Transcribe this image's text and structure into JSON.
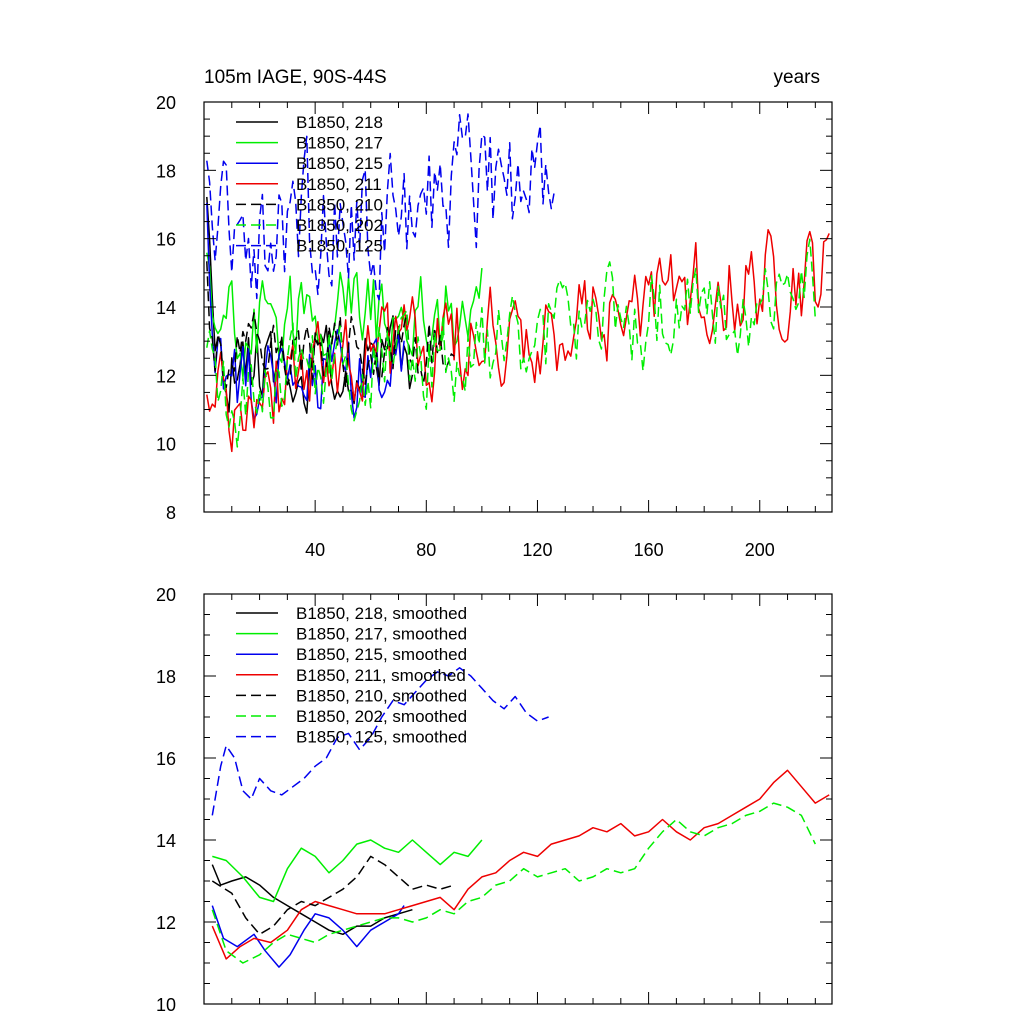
{
  "chart_data": [
    {
      "type": "line",
      "title_left": "105m IAGE, 90S-44S",
      "title_right": "years",
      "xlabel": "",
      "ylabel": "",
      "xlim": [
        0,
        226
      ],
      "ylim": [
        8,
        20
      ],
      "xticks": [
        40,
        80,
        120,
        160,
        200
      ],
      "yticks": [
        8,
        10,
        12,
        14,
        16,
        18,
        20
      ],
      "legend_position": "top-left",
      "series": [
        {
          "name": "B1850, 218",
          "color": "#000000",
          "dash": "solid",
          "start": 1,
          "length": 75,
          "base": 12.3,
          "trend": 0.0,
          "noise": 0.65,
          "early": 4.0,
          "seed": 11
        },
        {
          "name": "B1850, 217",
          "color": "#00ee00",
          "dash": "solid",
          "start": 1,
          "length": 100,
          "base": 13.4,
          "trend": 0.005,
          "noise": 0.75,
          "early": 2.5,
          "seed": 23
        },
        {
          "name": "B1850, 215",
          "color": "#0000ee",
          "dash": "solid",
          "start": 1,
          "length": 72,
          "base": 11.6,
          "trend": 0.004,
          "noise": 0.7,
          "early": 5.0,
          "seed": 37
        },
        {
          "name": "B1850, 211",
          "color": "#ee0000",
          "dash": "solid",
          "start": 1,
          "length": 225,
          "base": 11.4,
          "trend": 0.0165,
          "noise": 0.8,
          "early": 0.0,
          "seed": 41
        },
        {
          "name": "B1850, 210",
          "color": "#000000",
          "dash": "dashed",
          "start": 1,
          "length": 90,
          "base": 12.5,
          "trend": 0.006,
          "noise": 0.6,
          "early": 2.0,
          "seed": 53
        },
        {
          "name": "B1850, 202",
          "color": "#00ee00",
          "dash": "dashed",
          "start": 1,
          "length": 220,
          "base": 11.4,
          "trend": 0.0145,
          "noise": 0.8,
          "early": 2.0,
          "seed": 67
        },
        {
          "name": "B1850, 125",
          "color": "#0000ee",
          "dash": "dashed",
          "start": 1,
          "length": 126,
          "base": 15.6,
          "trend": 0.02,
          "noise": 1.1,
          "early": 2.0,
          "seed": 79
        }
      ]
    },
    {
      "type": "line",
      "title_left": "",
      "title_right": "",
      "xlabel": "",
      "ylabel": "",
      "xlim": [
        0,
        226
      ],
      "ylim": [
        10,
        20
      ],
      "xticks": [
        40,
        80,
        120,
        160,
        200
      ],
      "yticks": [
        10,
        12,
        14,
        16,
        18,
        20
      ],
      "legend_position": "top-left",
      "series": [
        {
          "name": "B1850, 218, smoothed",
          "color": "#000000",
          "dash": "solid",
          "points": [
            [
              3,
              13.4
            ],
            [
              6,
              12.9
            ],
            [
              10,
              13.0
            ],
            [
              15,
              13.1
            ],
            [
              20,
              12.9
            ],
            [
              25,
              12.6
            ],
            [
              30,
              12.4
            ],
            [
              35,
              12.2
            ],
            [
              40,
              12.0
            ],
            [
              45,
              11.8
            ],
            [
              50,
              11.7
            ],
            [
              55,
              11.9
            ],
            [
              60,
              11.9
            ],
            [
              65,
              12.1
            ],
            [
              70,
              12.2
            ],
            [
              75,
              12.3
            ]
          ]
        },
        {
          "name": "B1850, 217, smoothed",
          "color": "#00ee00",
          "dash": "solid",
          "points": [
            [
              3,
              13.6
            ],
            [
              8,
              13.5
            ],
            [
              14,
              13.1
            ],
            [
              20,
              12.6
            ],
            [
              25,
              12.5
            ],
            [
              30,
              13.3
            ],
            [
              35,
              13.8
            ],
            [
              40,
              13.6
            ],
            [
              45,
              13.2
            ],
            [
              50,
              13.5
            ],
            [
              55,
              13.9
            ],
            [
              60,
              14.0
            ],
            [
              65,
              13.8
            ],
            [
              70,
              13.7
            ],
            [
              75,
              14.0
            ],
            [
              80,
              13.7
            ],
            [
              85,
              13.4
            ],
            [
              90,
              13.7
            ],
            [
              95,
              13.6
            ],
            [
              100,
              14.0
            ]
          ]
        },
        {
          "name": "B1850, 215, smoothed",
          "color": "#0000ee",
          "dash": "solid",
          "points": [
            [
              3,
              12.4
            ],
            [
              7,
              11.6
            ],
            [
              12,
              11.4
            ],
            [
              18,
              11.7
            ],
            [
              22,
              11.3
            ],
            [
              27,
              10.9
            ],
            [
              31,
              11.2
            ],
            [
              36,
              11.8
            ],
            [
              40,
              12.2
            ],
            [
              45,
              12.1
            ],
            [
              50,
              11.8
            ],
            [
              55,
              11.4
            ],
            [
              60,
              11.8
            ],
            [
              65,
              12.0
            ],
            [
              70,
              12.2
            ],
            [
              72,
              12.4
            ]
          ]
        },
        {
          "name": "B1850, 211, smoothed",
          "color": "#ee0000",
          "dash": "solid",
          "points": [
            [
              3,
              11.9
            ],
            [
              8,
              11.1
            ],
            [
              13,
              11.4
            ],
            [
              18,
              11.6
            ],
            [
              24,
              11.5
            ],
            [
              30,
              11.8
            ],
            [
              35,
              12.3
            ],
            [
              40,
              12.5
            ],
            [
              45,
              12.4
            ],
            [
              50,
              12.3
            ],
            [
              55,
              12.2
            ],
            [
              60,
              12.2
            ],
            [
              65,
              12.2
            ],
            [
              70,
              12.3
            ],
            [
              75,
              12.4
            ],
            [
              80,
              12.5
            ],
            [
              85,
              12.6
            ],
            [
              90,
              12.3
            ],
            [
              95,
              12.8
            ],
            [
              100,
              13.1
            ],
            [
              105,
              13.2
            ],
            [
              110,
              13.5
            ],
            [
              115,
              13.7
            ],
            [
              120,
              13.6
            ],
            [
              125,
              13.9
            ],
            [
              130,
              14.0
            ],
            [
              135,
              14.1
            ],
            [
              140,
              14.3
            ],
            [
              145,
              14.2
            ],
            [
              150,
              14.4
            ],
            [
              155,
              14.1
            ],
            [
              160,
              14.2
            ],
            [
              165,
              14.5
            ],
            [
              170,
              14.2
            ],
            [
              175,
              14.0
            ],
            [
              180,
              14.3
            ],
            [
              185,
              14.4
            ],
            [
              190,
              14.6
            ],
            [
              195,
              14.8
            ],
            [
              200,
              15.0
            ],
            [
              205,
              15.4
            ],
            [
              210,
              15.7
            ],
            [
              215,
              15.3
            ],
            [
              220,
              14.9
            ],
            [
              225,
              15.1
            ]
          ]
        },
        {
          "name": "B1850, 210, smoothed",
          "color": "#000000",
          "dash": "dashed",
          "points": [
            [
              3,
              13.0
            ],
            [
              10,
              12.7
            ],
            [
              15,
              12.1
            ],
            [
              20,
              11.7
            ],
            [
              25,
              11.9
            ],
            [
              30,
              12.3
            ],
            [
              35,
              12.5
            ],
            [
              40,
              12.4
            ],
            [
              45,
              12.6
            ],
            [
              50,
              12.8
            ],
            [
              55,
              13.1
            ],
            [
              60,
              13.6
            ],
            [
              65,
              13.4
            ],
            [
              70,
              13.1
            ],
            [
              75,
              12.8
            ],
            [
              80,
              12.9
            ],
            [
              85,
              12.8
            ],
            [
              90,
              12.9
            ]
          ]
        },
        {
          "name": "B1850, 202, smoothed",
          "color": "#00ee00",
          "dash": "dashed",
          "points": [
            [
              3,
              12.3
            ],
            [
              8,
              11.3
            ],
            [
              14,
              11.0
            ],
            [
              20,
              11.2
            ],
            [
              25,
              11.5
            ],
            [
              30,
              11.7
            ],
            [
              35,
              11.6
            ],
            [
              40,
              11.5
            ],
            [
              45,
              11.7
            ],
            [
              50,
              11.8
            ],
            [
              55,
              11.9
            ],
            [
              60,
              12.0
            ],
            [
              65,
              12.1
            ],
            [
              70,
              12.1
            ],
            [
              75,
              12.0
            ],
            [
              80,
              12.1
            ],
            [
              85,
              12.3
            ],
            [
              90,
              12.2
            ],
            [
              95,
              12.5
            ],
            [
              100,
              12.6
            ],
            [
              105,
              12.9
            ],
            [
              110,
              13.0
            ],
            [
              115,
              13.3
            ],
            [
              120,
              13.1
            ],
            [
              125,
              13.2
            ],
            [
              130,
              13.3
            ],
            [
              135,
              13.0
            ],
            [
              140,
              13.1
            ],
            [
              145,
              13.3
            ],
            [
              150,
              13.2
            ],
            [
              155,
              13.3
            ],
            [
              160,
              13.8
            ],
            [
              165,
              14.2
            ],
            [
              170,
              14.5
            ],
            [
              175,
              14.2
            ],
            [
              180,
              14.1
            ],
            [
              185,
              14.3
            ],
            [
              190,
              14.4
            ],
            [
              195,
              14.6
            ],
            [
              200,
              14.7
            ],
            [
              205,
              14.9
            ],
            [
              210,
              14.8
            ],
            [
              215,
              14.6
            ],
            [
              220,
              13.9
            ]
          ]
        },
        {
          "name": "B1850, 125, smoothed",
          "color": "#0000ee",
          "dash": "dashed",
          "points": [
            [
              3,
              14.6
            ],
            [
              6,
              15.8
            ],
            [
              8,
              16.3
            ],
            [
              11,
              16.0
            ],
            [
              14,
              15.2
            ],
            [
              17,
              15.0
            ],
            [
              20,
              15.5
            ],
            [
              24,
              15.2
            ],
            [
              28,
              15.1
            ],
            [
              32,
              15.3
            ],
            [
              36,
              15.5
            ],
            [
              40,
              15.8
            ],
            [
              44,
              16.0
            ],
            [
              48,
              16.5
            ],
            [
              52,
              16.6
            ],
            [
              56,
              16.2
            ],
            [
              60,
              16.5
            ],
            [
              64,
              17.0
            ],
            [
              68,
              17.4
            ],
            [
              72,
              17.3
            ],
            [
              76,
              17.6
            ],
            [
              80,
              17.9
            ],
            [
              84,
              18.1
            ],
            [
              88,
              18.0
            ],
            [
              92,
              18.2
            ],
            [
              96,
              18.0
            ],
            [
              100,
              17.7
            ],
            [
              104,
              17.4
            ],
            [
              108,
              17.2
            ],
            [
              112,
              17.5
            ],
            [
              116,
              17.1
            ],
            [
              120,
              16.9
            ],
            [
              124,
              17.0
            ]
          ]
        }
      ]
    }
  ]
}
